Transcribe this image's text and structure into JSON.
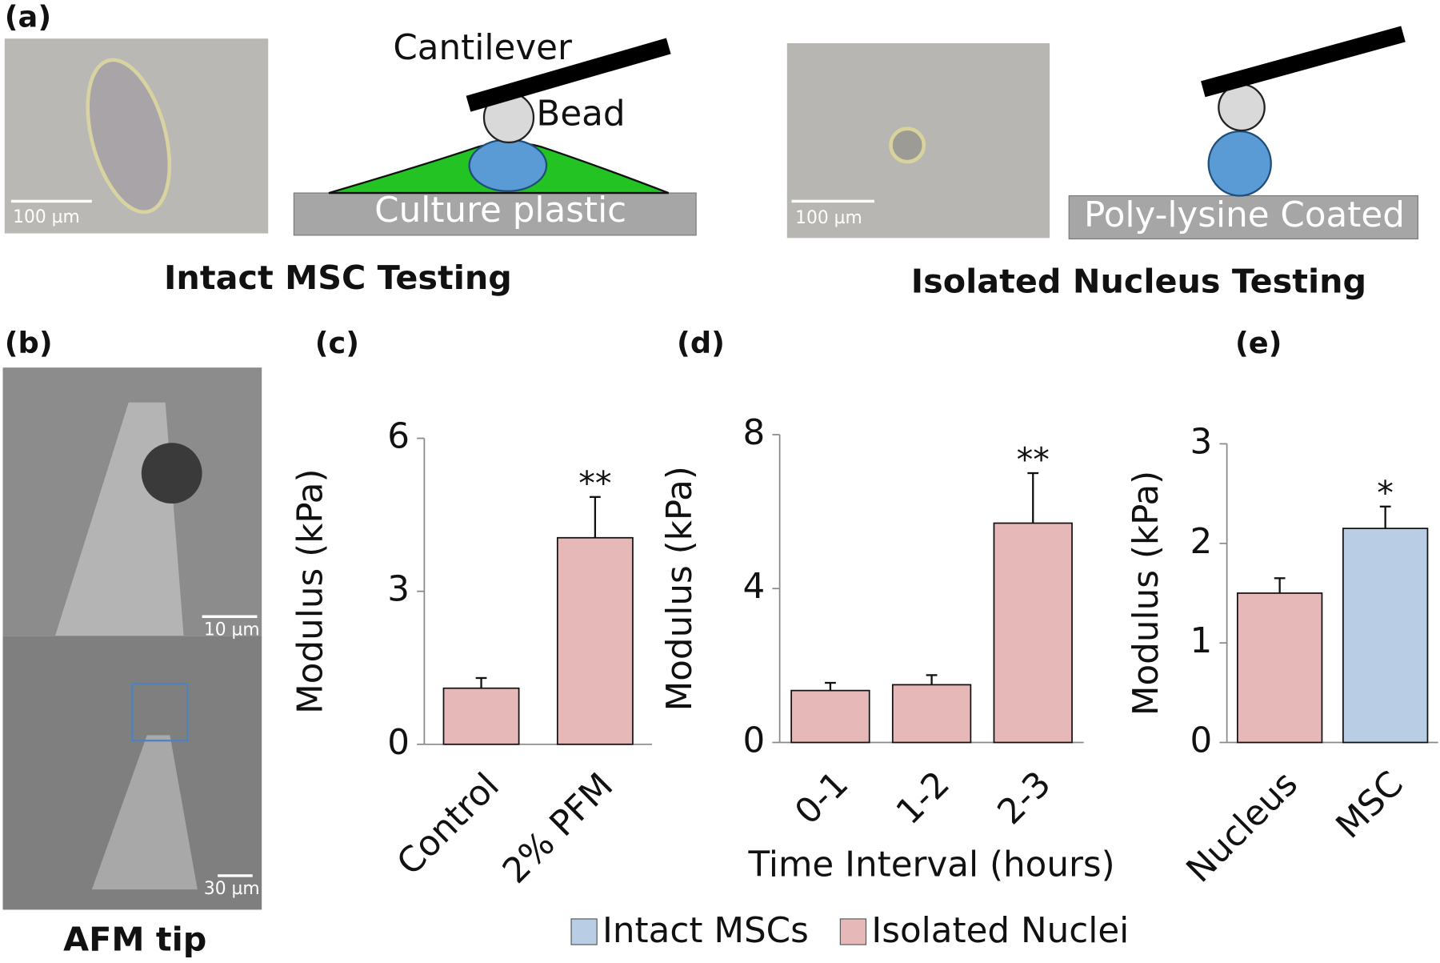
{
  "panels": {
    "a": "(a)",
    "b": "(b)",
    "c": "(c)",
    "d": "(d)",
    "e": "(e)"
  },
  "diagram": {
    "cantilever": "Cantilever",
    "bead": "Bead",
    "culture": "Culture plastic",
    "coated": "Poly-lysine Coated",
    "intact_title": "Intact MSC Testing",
    "isolated_title": "Isolated Nucleus Testing",
    "afm_title": "AFM tip",
    "scale_1": "100 µm",
    "scale_2": "100 µm",
    "scale_3": "10 µm",
    "scale_4": "30 µm"
  },
  "legend": [
    {
      "name": "Intact MSCs",
      "color": "#b9cde5"
    },
    {
      "name": "Isolated Nuclei",
      "color": "#e6b9b8"
    }
  ],
  "chart_data": [
    {
      "type": "bar",
      "y_label": "Modulus (kPa)",
      "categories": [
        "Control",
        "2% PFM"
      ],
      "values": [
        1.1,
        4.05
      ],
      "errors": [
        0.2,
        0.8
      ],
      "colors": [
        "#e6b9b8",
        "#e6b9b8"
      ],
      "annotations": [
        null,
        "**"
      ],
      "ylim": [
        0,
        6
      ],
      "yticks": [
        0,
        3,
        6
      ]
    },
    {
      "type": "bar",
      "y_label": "Modulus (kPa)",
      "x_label": "Time Interval (hours)",
      "categories": [
        "0-1",
        "1-2",
        "2-3"
      ],
      "values": [
        1.35,
        1.5,
        5.7
      ],
      "errors": [
        0.2,
        0.25,
        1.3
      ],
      "colors": [
        "#e6b9b8",
        "#e6b9b8",
        "#e6b9b8"
      ],
      "annotations": [
        null,
        null,
        "**"
      ],
      "ylim": [
        0,
        8
      ],
      "yticks": [
        0,
        4,
        8
      ]
    },
    {
      "type": "bar",
      "y_label": "Modulus (kPa)",
      "categories": [
        "Nucleus",
        "MSC"
      ],
      "values": [
        1.5,
        2.15
      ],
      "errors": [
        0.15,
        0.22
      ],
      "colors": [
        "#e6b9b8",
        "#b9cde5"
      ],
      "annotations": [
        null,
        "*"
      ],
      "ylim": [
        0,
        3
      ],
      "yticks": [
        0,
        1,
        2,
        3
      ]
    }
  ]
}
